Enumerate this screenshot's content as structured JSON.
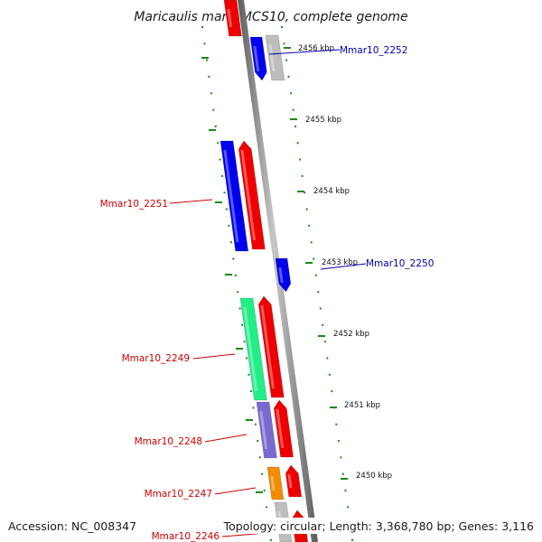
{
  "title": "Maricaulis maris MCS10, complete genome",
  "accession": "Accession: NC_008347",
  "summary": "Topology: circular; Length: 3,368,780 bp; Genes: 3,116",
  "colors": {
    "backbone": "#8a8a8a",
    "tick": "#1a8a1a",
    "label_reverse": "#cc0000",
    "label_forward": "#0000aa",
    "cds_forward": "#0000ee",
    "cds_reverse": "#ee0000",
    "gray": "#bdbdbd",
    "green": "#22ee88",
    "purple": "#7a6ad0",
    "orange": "#f08c00"
  },
  "scale_labels": [
    "2456 kbp",
    "2455 kbp",
    "2454 kbp",
    "2453 kbp",
    "2452 kbp",
    "2451 kbp",
    "2450 kbp"
  ],
  "gene_labels": [
    {
      "id": "g2252",
      "text": "Mmar10_2252",
      "side": "forward"
    },
    {
      "id": "g2251",
      "text": "Mmar10_2251",
      "side": "reverse"
    },
    {
      "id": "g2250",
      "text": "Mmar10_2250",
      "side": "forward"
    },
    {
      "id": "g2249",
      "text": "Mmar10_2249",
      "side": "reverse"
    },
    {
      "id": "g2248",
      "text": "Mmar10_2248",
      "side": "reverse"
    },
    {
      "id": "g2247",
      "text": "Mmar10_2247",
      "side": "reverse"
    },
    {
      "id": "g2246",
      "text": "Mmar10_2246",
      "side": "reverse"
    }
  ]
}
